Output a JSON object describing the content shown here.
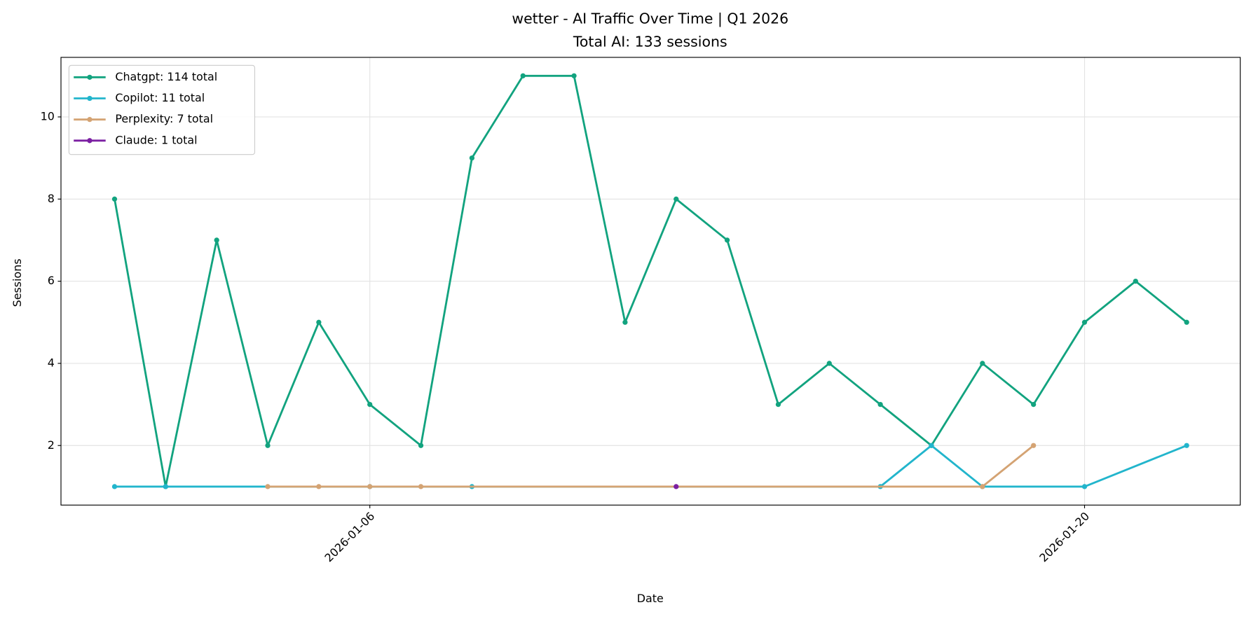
{
  "chart_data": {
    "type": "line",
    "title": "wetter - AI Traffic Over Time | Q1 2026",
    "subtitle": "Total AI: 133 sessions",
    "x_label": "Date",
    "y_label": "Sessions",
    "series": [
      {
        "name": "Chatgpt: 114 total",
        "color": "#12a37f",
        "x": [
          "2026-01-01",
          "2026-01-02",
          "2026-01-03",
          "2026-01-04",
          "2026-01-05",
          "2026-01-06",
          "2026-01-07",
          "2026-01-08",
          "2026-01-09",
          "2026-01-10",
          "2026-01-11",
          "2026-01-12",
          "2026-01-13",
          "2026-01-14",
          "2026-01-15",
          "2026-01-16",
          "2026-01-17",
          "2026-01-18",
          "2026-01-19",
          "2026-01-20",
          "2026-01-21",
          "2026-01-22"
        ],
        "values": [
          8,
          1,
          7,
          2,
          5,
          3,
          2,
          9,
          11,
          11,
          5,
          8,
          7,
          3,
          4,
          3,
          2,
          4,
          3,
          5,
          6,
          5
        ]
      },
      {
        "name": "Copilot: 11 total",
        "color": "#22b5cc",
        "x": [
          "2026-01-01",
          "2026-01-02",
          "2026-01-06",
          "2026-01-08",
          "2026-01-16",
          "2026-01-17",
          "2026-01-18",
          "2026-01-20",
          "2026-01-22"
        ],
        "values": [
          1,
          1,
          1,
          1,
          1,
          2,
          1,
          1,
          2
        ]
      },
      {
        "name": "Perplexity: 7 total",
        "color": "#d4a373",
        "x": [
          "2026-01-04",
          "2026-01-05",
          "2026-01-06",
          "2026-01-07",
          "2026-01-18",
          "2026-01-19"
        ],
        "values": [
          1,
          1,
          1,
          1,
          1,
          2
        ]
      },
      {
        "name": "Claude: 1 total",
        "color": "#7b1fa2",
        "x": [
          "2026-01-12"
        ],
        "values": [
          1
        ]
      }
    ],
    "xticks": [
      "2026-01-06",
      "2026-01-20"
    ],
    "ylim": [
      0.55,
      11.45
    ],
    "yticks": [
      2,
      4,
      6,
      8,
      10
    ],
    "grid": true,
    "legend": "upper left"
  }
}
